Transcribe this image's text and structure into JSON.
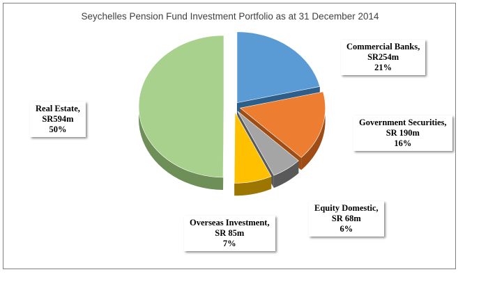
{
  "chart_data": {
    "type": "pie",
    "title": "Seychelles Pension Fund Investment Portfolio as at 31 December 2014",
    "slices": [
      {
        "name": "Commercial Banks,",
        "value_label": "SR254m",
        "value": 254,
        "percent_label": "21%",
        "percent": 21,
        "color": "#5b9bd5",
        "side": "#2e5f8a"
      },
      {
        "name": "Government Securities,",
        "value_label": "SR 190m",
        "value": 190,
        "percent_label": "16%",
        "percent": 16,
        "color": "#ed7d31",
        "side": "#a04d15"
      },
      {
        "name": "Equity Domestic,",
        "value_label": "SR 68m",
        "value": 68,
        "percent_label": "6%",
        "percent": 6,
        "color": "#a5a5a5",
        "side": "#595959"
      },
      {
        "name": "Overseas Investment,",
        "value_label": "SR 85m",
        "value": 85,
        "percent_label": "7%",
        "percent": 7,
        "color": "#ffc000",
        "side": "#9c7600"
      },
      {
        "name": "Real Estate,",
        "value_label": "SR594m",
        "value": 594,
        "percent_label": "50%",
        "percent": 50,
        "color": "#a9d18e",
        "side": "#6f8f58"
      }
    ]
  }
}
